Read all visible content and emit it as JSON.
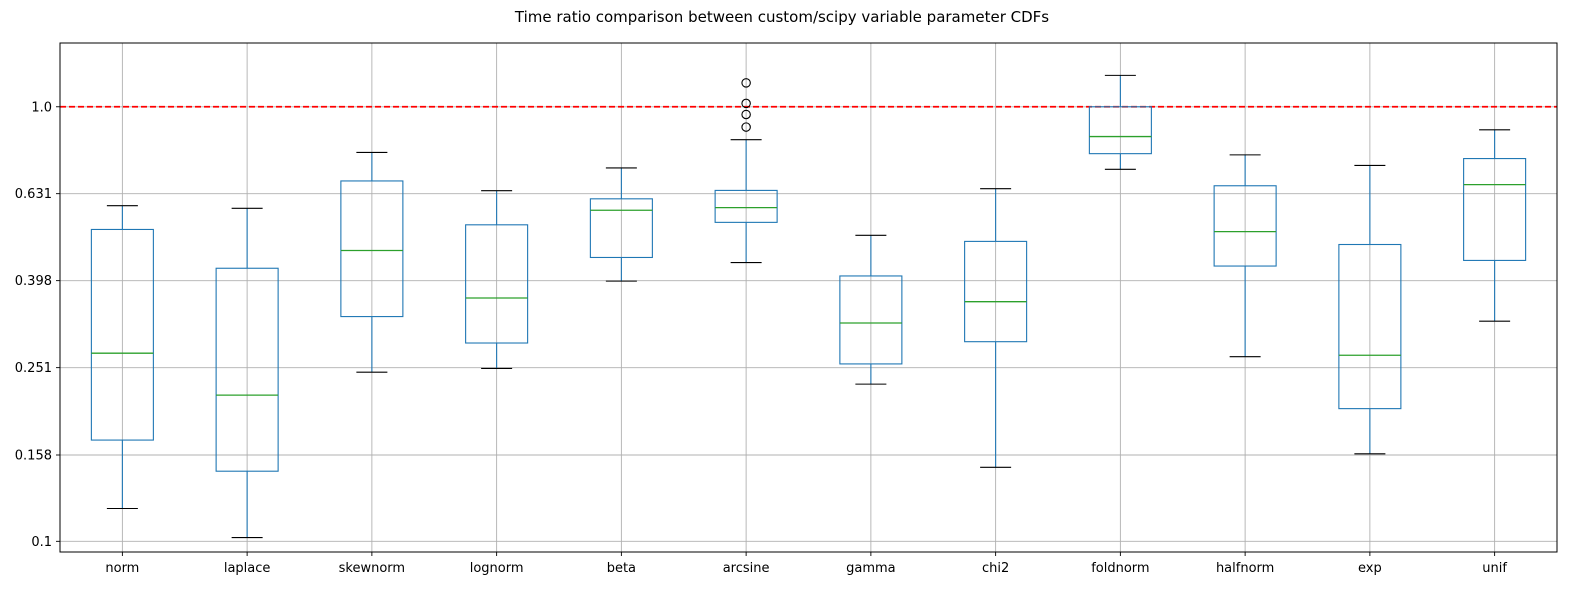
{
  "chart_data": {
    "type": "box",
    "title": "Time ratio comparison between custom/scipy variable parameter CDFs",
    "xlabel": "",
    "ylabel": "",
    "y_scale": "log10",
    "ylim": [
      0.0945,
      1.402
    ],
    "y_ticks": [
      0.1,
      0.158,
      0.251,
      0.398,
      0.631,
      1.0
    ],
    "y_tick_labels": [
      "0.1",
      "0.158",
      "0.251",
      "0.398",
      "0.631",
      "1.0"
    ],
    "grid": true,
    "reference_line": {
      "y": 1.0,
      "color": "#ff0000",
      "style": "dashed"
    },
    "colors": {
      "box": "#1f77b4",
      "median": "#2ca02c",
      "cap": "#000000",
      "grid": "#b0b0b0",
      "flier": "#000000"
    },
    "categories": [
      "norm",
      "laplace",
      "skewnorm",
      "lognorm",
      "beta",
      "arcsine",
      "gamma",
      "chi2",
      "foldnorm",
      "halfnorm",
      "exp",
      "unif"
    ],
    "boxes": [
      {
        "label": "norm",
        "whislo": 0.119,
        "q1": 0.171,
        "median": 0.271,
        "q3": 0.522,
        "whishi": 0.592,
        "fliers": []
      },
      {
        "label": "laplace",
        "whislo": 0.102,
        "q1": 0.145,
        "median": 0.217,
        "q3": 0.425,
        "whishi": 0.584,
        "fliers": []
      },
      {
        "label": "skewnorm",
        "whislo": 0.245,
        "q1": 0.329,
        "median": 0.467,
        "q3": 0.675,
        "whishi": 0.785,
        "fliers": []
      },
      {
        "label": "lognorm",
        "whislo": 0.25,
        "q1": 0.286,
        "median": 0.363,
        "q3": 0.535,
        "whishi": 0.641,
        "fliers": []
      },
      {
        "label": "beta",
        "whislo": 0.397,
        "q1": 0.45,
        "median": 0.578,
        "q3": 0.614,
        "whishi": 0.723,
        "fliers": []
      },
      {
        "label": "arcsine",
        "whislo": 0.438,
        "q1": 0.542,
        "median": 0.586,
        "q3": 0.642,
        "whishi": 0.84,
        "fliers": [
          0.898,
          0.96,
          1.018,
          1.135
        ]
      },
      {
        "label": "gamma",
        "whislo": 0.23,
        "q1": 0.256,
        "median": 0.318,
        "q3": 0.408,
        "whishi": 0.506,
        "fliers": []
      },
      {
        "label": "chi2",
        "whislo": 0.148,
        "q1": 0.288,
        "median": 0.356,
        "q3": 0.49,
        "whishi": 0.648,
        "fliers": []
      },
      {
        "label": "foldnorm",
        "whislo": 0.718,
        "q1": 0.78,
        "median": 0.854,
        "q3": 1.0,
        "whishi": 1.181,
        "fliers": []
      },
      {
        "label": "halfnorm",
        "whislo": 0.266,
        "q1": 0.43,
        "median": 0.516,
        "q3": 0.658,
        "whishi": 0.775,
        "fliers": []
      },
      {
        "label": "exp",
        "whislo": 0.159,
        "q1": 0.202,
        "median": 0.268,
        "q3": 0.482,
        "whishi": 0.733,
        "fliers": []
      },
      {
        "label": "unif",
        "whislo": 0.321,
        "q1": 0.443,
        "median": 0.662,
        "q3": 0.76,
        "whishi": 0.885,
        "fliers": []
      }
    ]
  }
}
